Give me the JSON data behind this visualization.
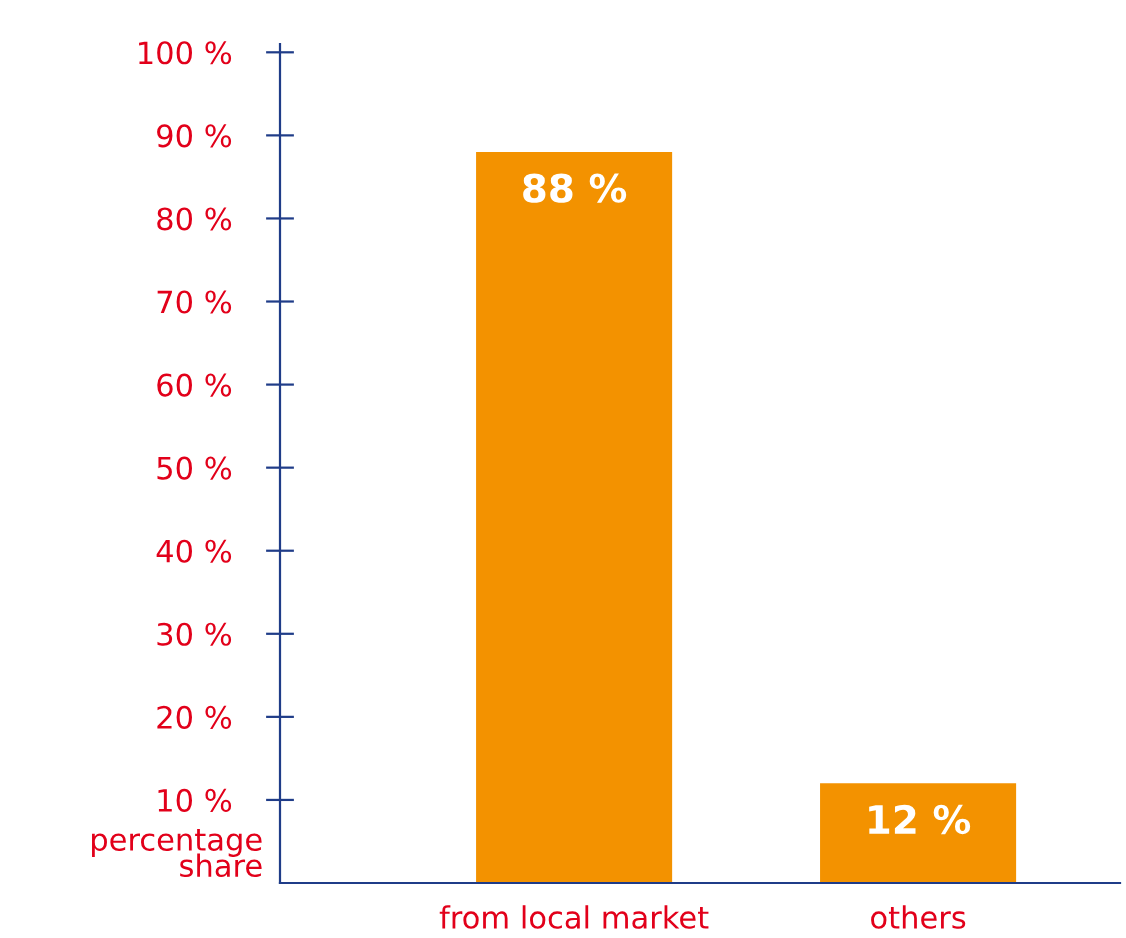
{
  "chart_data": {
    "type": "bar",
    "categories": [
      "from local market",
      "others"
    ],
    "values": [
      88,
      12
    ],
    "color": "#f39200",
    "value_labels": [
      "88 %",
      "12 %"
    ],
    "ylabel": "percentage\nshare",
    "ylim": [
      0,
      101
    ],
    "yticks": [
      {
        "value": 10,
        "label": "10 %"
      },
      {
        "value": 20,
        "label": "20 %"
      },
      {
        "value": 30,
        "label": "30 %"
      },
      {
        "value": 40,
        "label": "40 %"
      },
      {
        "value": 50,
        "label": "50 %"
      },
      {
        "value": 60,
        "label": "60 %"
      },
      {
        "value": 70,
        "label": "70 %"
      },
      {
        "value": 80,
        "label": "80 %"
      },
      {
        "value": 90,
        "label": "90 %"
      },
      {
        "value": 100,
        "label": "100 %"
      }
    ],
    "grid": false,
    "legend": false
  }
}
